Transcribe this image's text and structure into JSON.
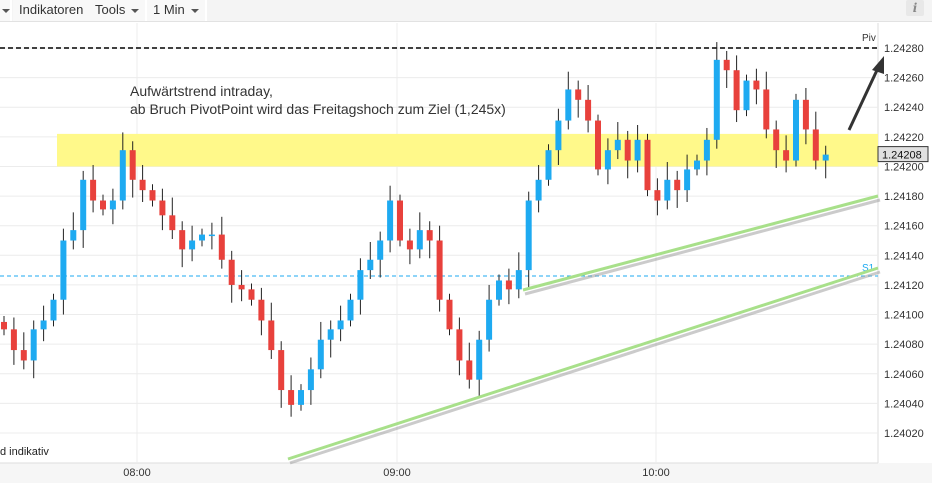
{
  "toolbar": {
    "items": [
      "Indikatoren",
      "Tools",
      "1 Min"
    ],
    "info_icon": "info-icon"
  },
  "annotation": {
    "line1": "Aufwärtstrend intraday,",
    "line2": "ab Bruch PivotPoint wird das Freitagshoch zum Ziel (1,245x)"
  },
  "footer_label": "d indikativ",
  "chart_data": {
    "type": "candlestick",
    "interval": "1 Min",
    "ylim": [
      1.24005,
      1.24292
    ],
    "y_ticks": [
      1.2428,
      1.2426,
      1.2424,
      1.2422,
      1.242,
      1.2418,
      1.2416,
      1.2414,
      1.2412,
      1.241,
      1.2408,
      1.2406,
      1.2404,
      1.2402
    ],
    "y_tick_labels": [
      "1.24280",
      "1.24260",
      "1.24240",
      "1.24220",
      "1.24200",
      "1.24180",
      "1.24160",
      "1.24140",
      "1.24120",
      "1.24100",
      "1.24080",
      "1.24060",
      "1.24040",
      "1.24020"
    ],
    "x_ticks": [
      "08:00",
      "09:00",
      "10:00"
    ],
    "last_price": "1.24208",
    "closes": [
      1.2409,
      1.24076,
      1.24069,
      1.2409,
      1.24096,
      1.2411,
      1.2415,
      1.24157,
      1.24191,
      1.24177,
      1.24171,
      1.24177,
      1.24211,
      1.24191,
      1.24184,
      1.24177,
      1.24167,
      1.24157,
      1.24144,
      1.2415,
      1.24154,
      1.24154,
      1.24137,
      1.2412,
      1.24117,
      1.2411,
      1.24096,
      1.24076,
      1.24049,
      1.24039,
      1.24049,
      1.24063,
      1.24083,
      1.2409,
      1.24096,
      1.2411,
      1.2413,
      1.24137,
      1.2415,
      1.24177,
      1.2415,
      1.24144,
      1.24157,
      1.2415,
      1.2411,
      1.2409,
      1.24069,
      1.24056,
      1.24083,
      1.2411,
      1.24123,
      1.24117,
      1.2413,
      1.24177,
      1.24191,
      1.24211,
      1.24231,
      1.24252,
      1.24245,
      1.24231,
      1.24198,
      1.24211,
      1.24218,
      1.24204,
      1.24218,
      1.24184,
      1.24177,
      1.24191,
      1.24184,
      1.24198,
      1.24204,
      1.24218,
      1.24272,
      1.24265,
      1.24238,
      1.24258,
      1.24252,
      1.24225,
      1.24211,
      1.24204,
      1.24245,
      1.24225,
      1.24204,
      1.24208
    ],
    "levels": {
      "pivot": {
        "label": "Piv",
        "value": 1.2428,
        "color": "#000000"
      },
      "support": {
        "label": "S1",
        "value": 1.24126,
        "color": "#1eaaf1"
      },
      "zone": {
        "from": 1.242,
        "to": 1.24222,
        "color": "#fff98a"
      }
    },
    "trendlines_color": "#a8e08a",
    "up_color": "#1eaaf1",
    "down_color": "#e8413c"
  }
}
